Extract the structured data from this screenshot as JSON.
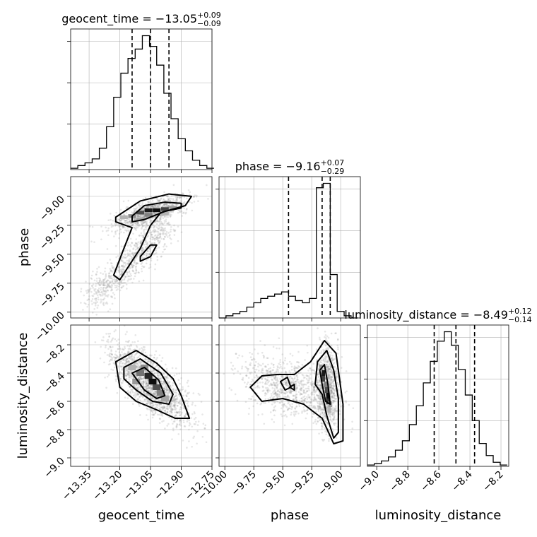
{
  "chart_data": [
    {
      "panel": "hist-geocent_time",
      "type": "histogram",
      "title": {
        "prefix": "geocent_time = ",
        "value": "−13.05",
        "upper": "+0.09",
        "lower": "−0.09"
      },
      "xlim": [
        -13.44,
        -12.75
      ],
      "bin_edges": [
        -13.44,
        -13.405,
        -13.37,
        -13.335,
        -13.3,
        -13.265,
        -13.23,
        -13.195,
        -13.16,
        -13.125,
        -13.09,
        -13.055,
        -13.02,
        -12.985,
        -12.95,
        -12.915,
        -12.88,
        -12.845,
        -12.81,
        -12.775,
        -12.74
      ],
      "counts": [
        1,
        3,
        5,
        8,
        16,
        32,
        54,
        72,
        83,
        90,
        100,
        92,
        78,
        57,
        38,
        23,
        14,
        7,
        3,
        1
      ],
      "quantiles": [
        -13.14,
        -13.05,
        -12.96
      ]
    },
    {
      "panel": "scatter-phase-vs-geocent_time",
      "type": "scatter",
      "xlim": [
        -13.44,
        -12.75
      ],
      "ylim": [
        -10.05,
        -8.83
      ],
      "ylabel": "phase",
      "yticks": [
        "−9.00",
        "−9.25",
        "−9.50",
        "−9.75",
        "−10.00"
      ],
      "ytick_values": [
        -9.0,
        -9.25,
        -9.5,
        -9.75,
        -10.0
      ],
      "contours": [
        [
          [
            -13.14,
            -9.17
          ],
          [
            -13.08,
            -9.08
          ],
          [
            -12.98,
            -9.05
          ],
          [
            -12.9,
            -9.06
          ],
          [
            -12.9,
            -9.1
          ],
          [
            -12.98,
            -9.13
          ],
          [
            -13.08,
            -9.2
          ],
          [
            -13.14,
            -9.22
          ]
        ],
        [
          [
            -13.22,
            -9.18
          ],
          [
            -13.1,
            -9.04
          ],
          [
            -12.96,
            -8.98
          ],
          [
            -12.85,
            -9.0
          ],
          [
            -12.88,
            -9.08
          ],
          [
            -13.0,
            -9.14
          ],
          [
            -13.05,
            -9.25
          ],
          [
            -13.1,
            -9.45
          ],
          [
            -13.2,
            -9.72
          ],
          [
            -13.23,
            -9.68
          ],
          [
            -13.18,
            -9.45
          ],
          [
            -13.14,
            -9.27
          ],
          [
            -13.22,
            -9.22
          ]
        ],
        [
          [
            -13.1,
            -9.52
          ],
          [
            -13.05,
            -9.42
          ],
          [
            -13.02,
            -9.42
          ],
          [
            -13.05,
            -9.52
          ],
          [
            -13.1,
            -9.56
          ]
        ]
      ]
    },
    {
      "panel": "hist-phase",
      "type": "histogram",
      "title": {
        "prefix": "phase = ",
        "value": "−9.16",
        "upper": "+0.07",
        "lower": "−0.29"
      },
      "xlim": [
        -10.05,
        -8.83
      ],
      "bin_edges": [
        -10.05,
        -9.99,
        -9.93,
        -9.87,
        -9.81,
        -9.75,
        -9.69,
        -9.63,
        -9.57,
        -9.51,
        -9.45,
        -9.39,
        -9.33,
        -9.27,
        -9.21,
        -9.15,
        -9.09,
        -9.03,
        -8.97,
        -8.91,
        -8.85
      ],
      "counts": [
        0,
        1,
        2,
        3,
        5,
        7,
        9,
        10,
        11,
        12,
        10,
        8,
        7,
        9,
        60,
        62,
        20,
        3,
        1,
        0
      ],
      "quantiles": [
        -9.45,
        -9.16,
        -9.09
      ]
    },
    {
      "panel": "scatter-luminosity_distance-vs-geocent_time",
      "type": "scatter",
      "xlim": [
        -13.44,
        -12.75
      ],
      "ylim": [
        -9.06,
        -8.06
      ],
      "ylabel": "luminosity_distance",
      "xlabel": "geocent_time",
      "yticks": [
        "−8.2",
        "−8.4",
        "−8.6",
        "−8.8",
        "−9.0"
      ],
      "ytick_values": [
        -8.2,
        -8.4,
        -8.6,
        -8.8,
        -9.0
      ],
      "xticks": [
        "−13.35",
        "−13.20",
        "−13.05",
        "−12.90",
        "−12.75"
      ],
      "xtick_values": [
        -13.35,
        -13.2,
        -13.05,
        -12.9,
        -12.75
      ],
      "contours": [
        [
          [
            -13.14,
            -8.4
          ],
          [
            -13.08,
            -8.36
          ],
          [
            -13.01,
            -8.45
          ],
          [
            -12.98,
            -8.56
          ],
          [
            -13.02,
            -8.58
          ],
          [
            -13.08,
            -8.52
          ]
        ],
        [
          [
            -13.18,
            -8.36
          ],
          [
            -13.1,
            -8.3
          ],
          [
            -13.0,
            -8.4
          ],
          [
            -12.94,
            -8.55
          ],
          [
            -12.96,
            -8.62
          ],
          [
            -13.04,
            -8.6
          ],
          [
            -13.12,
            -8.52
          ],
          [
            -13.18,
            -8.44
          ]
        ],
        [
          [
            -13.22,
            -8.32
          ],
          [
            -13.12,
            -8.24
          ],
          [
            -13.02,
            -8.33
          ],
          [
            -12.94,
            -8.44
          ],
          [
            -12.9,
            -8.56
          ],
          [
            -12.86,
            -8.72
          ],
          [
            -12.93,
            -8.72
          ],
          [
            -13.02,
            -8.66
          ],
          [
            -13.12,
            -8.6
          ],
          [
            -13.2,
            -8.5
          ]
        ]
      ]
    },
    {
      "panel": "scatter-luminosity_distance-vs-phase",
      "type": "scatter",
      "xlim": [
        -10.05,
        -8.83
      ],
      "ylim": [
        -9.06,
        -8.06
      ],
      "xlabel": "phase",
      "xticks": [
        "−10.00",
        "−9.75",
        "−9.50",
        "−9.25",
        "−9.00"
      ],
      "xtick_values": [
        -10.0,
        -9.75,
        -9.5,
        -9.25,
        -9.0
      ],
      "contours": [
        [
          [
            -9.18,
            -8.38
          ],
          [
            -9.14,
            -8.34
          ],
          [
            -9.11,
            -8.48
          ],
          [
            -9.09,
            -8.62
          ],
          [
            -9.13,
            -8.6
          ],
          [
            -9.16,
            -8.48
          ]
        ],
        [
          [
            -9.2,
            -8.32
          ],
          [
            -9.12,
            -8.24
          ],
          [
            -9.06,
            -8.38
          ],
          [
            -9.02,
            -8.58
          ],
          [
            -9.02,
            -8.82
          ],
          [
            -9.06,
            -8.86
          ],
          [
            -9.12,
            -8.7
          ],
          [
            -9.16,
            -8.55
          ],
          [
            -9.22,
            -8.48
          ]
        ],
        [
          [
            -9.78,
            -8.5
          ],
          [
            -9.68,
            -8.42
          ],
          [
            -9.55,
            -8.41
          ],
          [
            -9.4,
            -8.41
          ],
          [
            -9.26,
            -8.32
          ],
          [
            -9.14,
            -8.17
          ],
          [
            -9.04,
            -8.26
          ],
          [
            -8.98,
            -8.62
          ],
          [
            -8.98,
            -8.88
          ],
          [
            -9.06,
            -8.9
          ],
          [
            -9.16,
            -8.72
          ],
          [
            -9.32,
            -8.62
          ],
          [
            -9.5,
            -8.58
          ],
          [
            -9.68,
            -8.6
          ]
        ],
        [
          [
            -9.52,
            -8.46
          ],
          [
            -9.46,
            -8.43
          ],
          [
            -9.43,
            -8.5
          ],
          [
            -9.48,
            -8.52
          ]
        ],
        [
          [
            -9.44,
            -8.5
          ],
          [
            -9.4,
            -8.48
          ],
          [
            -9.4,
            -8.52
          ]
        ]
      ]
    },
    {
      "panel": "hist-luminosity_distance",
      "type": "histogram",
      "title": {
        "prefix": "luminosity_distance = ",
        "value": "−8.49",
        "upper": "+0.12",
        "lower": "−0.14"
      },
      "xlim": [
        -9.06,
        -8.15
      ],
      "xlabel": "luminosity_distance",
      "xticks": [
        "−9.0",
        "−8.8",
        "−8.6",
        "−8.4",
        "−8.2"
      ],
      "xtick_values": [
        -9.0,
        -8.8,
        -8.6,
        -8.4,
        -8.2
      ],
      "bin_edges": [
        -9.06,
        -9.015,
        -8.97,
        -8.925,
        -8.88,
        -8.835,
        -8.79,
        -8.745,
        -8.7,
        -8.655,
        -8.61,
        -8.565,
        -8.52,
        -8.475,
        -8.43,
        -8.385,
        -8.34,
        -8.295,
        -8.25,
        -8.205,
        -8.16
      ],
      "counts": [
        1,
        2,
        4,
        7,
        12,
        19,
        31,
        45,
        62,
        78,
        93,
        100,
        90,
        72,
        53,
        34,
        17,
        8,
        3,
        1
      ],
      "quantiles": [
        -8.63,
        -8.49,
        -8.37
      ]
    }
  ]
}
